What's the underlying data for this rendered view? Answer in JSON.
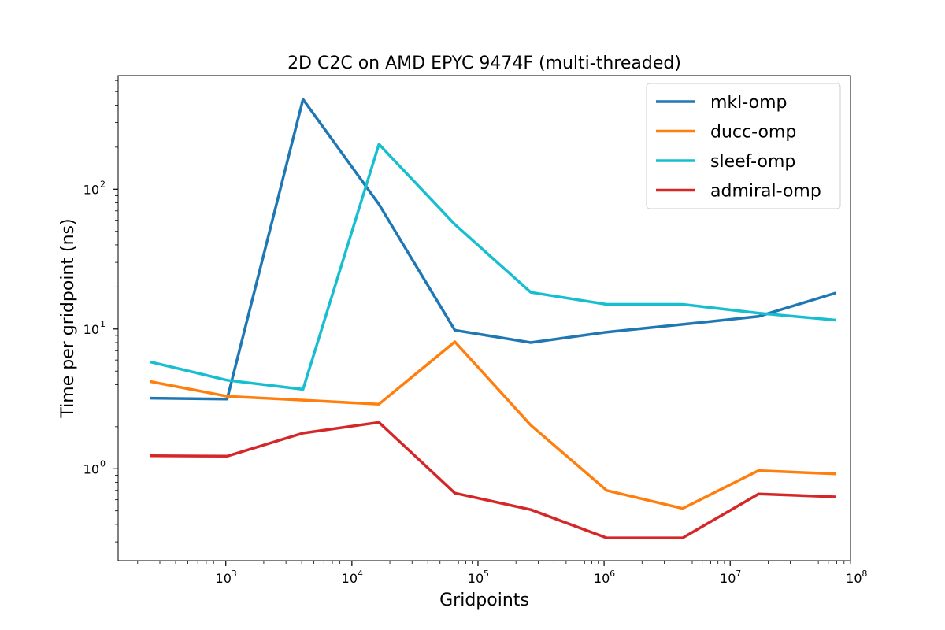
{
  "chart_data": {
    "type": "line",
    "title": "2D C2C on AMD EPYC 9474F (multi-threaded)",
    "xlabel": "Gridpoints",
    "ylabel": "Time per gridpoint (ns)",
    "xscale": "log",
    "yscale": "log",
    "xlim": [
      140,
      90000000
    ],
    "ylim": [
      0.22,
      650
    ],
    "x_ticks": [
      {
        "value": 1000,
        "base": "10",
        "exp": "3"
      },
      {
        "value": 10000,
        "base": "10",
        "exp": "4"
      },
      {
        "value": 100000,
        "base": "10",
        "exp": "5"
      },
      {
        "value": 1000000,
        "base": "10",
        "exp": "6"
      },
      {
        "value": 10000000,
        "base": "10",
        "exp": "7"
      },
      {
        "value": 100000000,
        "base": "10",
        "exp": "8"
      }
    ],
    "y_ticks": [
      {
        "value": 1,
        "base": "10",
        "exp": "0"
      },
      {
        "value": 10,
        "base": "10",
        "exp": "1"
      },
      {
        "value": 100,
        "base": "10",
        "exp": "2"
      }
    ],
    "x": [
      256,
      1024,
      4096,
      16384,
      65536,
      262144,
      1048576,
      4194304,
      16777216,
      67108864
    ],
    "series": [
      {
        "name": "mkl-omp",
        "color": "#1f77b4",
        "values": [
          3.2,
          3.15,
          440,
          78,
          9.8,
          8.0,
          9.5,
          10.8,
          12.3,
          18.0
        ]
      },
      {
        "name": "ducc-omp",
        "color": "#ff7f0e",
        "values": [
          4.2,
          3.3,
          3.1,
          2.9,
          8.1,
          2.05,
          0.7,
          0.52,
          0.97,
          0.92
        ]
      },
      {
        "name": "sleef-omp",
        "color": "#17becf",
        "values": [
          5.8,
          4.3,
          3.7,
          210,
          56,
          18.3,
          15.0,
          15.0,
          13.0,
          11.6
        ]
      },
      {
        "name": "admiral-omp",
        "color": "#d62728",
        "values": [
          1.24,
          1.23,
          1.8,
          2.15,
          0.67,
          0.51,
          0.32,
          0.32,
          0.66,
          0.63
        ]
      }
    ],
    "grid": false,
    "legend_position": "top-right"
  }
}
